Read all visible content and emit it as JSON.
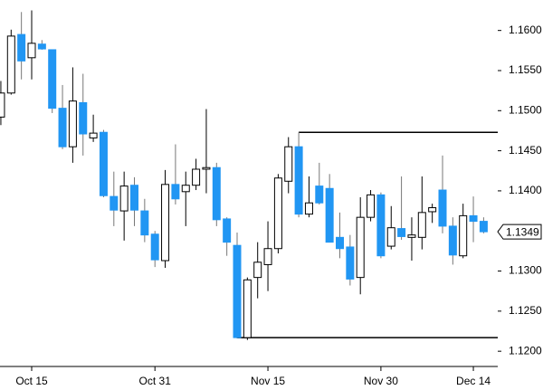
{
  "chart_data": {
    "type": "candlestick",
    "categories": [
      null,
      null,
      null,
      "Oct 15",
      null,
      null,
      null,
      null,
      null,
      null,
      null,
      null,
      null,
      null,
      null,
      "Oct 31",
      null,
      null,
      null,
      null,
      null,
      null,
      null,
      null,
      null,
      null,
      "Nov 15",
      null,
      null,
      null,
      null,
      null,
      null,
      null,
      null,
      null,
      null,
      "Nov 30",
      null,
      null,
      null,
      null,
      null,
      null,
      null,
      null,
      "Dec 14",
      null
    ],
    "open": [
      1.1492,
      1.1522,
      1.1595,
      1.1566,
      1.1583,
      1.1576,
      1.1503,
      1.1455,
      1.151,
      1.1466,
      1.1473,
      1.1393,
      1.1375,
      1.1407,
      1.1375,
      1.1346,
      1.1313,
      1.1408,
      1.1399,
      1.1407,
      1.1427,
      1.1429,
      1.1365,
      1.1332,
      1.1217,
      1.1292,
      1.1308,
      1.1328,
      1.1412,
      1.1455,
      1.1371,
      1.1406,
      1.1403,
      1.1342,
      1.133,
      1.1292,
      1.1367,
      1.1395,
      1.1331,
      1.1353,
      1.1342,
      1.1342,
      1.1374,
      1.1401,
      1.1356,
      1.1319,
      1.1369,
      1.1362
    ],
    "high": [
      1.1537,
      1.1601,
      1.1623,
      1.1625,
      1.1588,
      1.1576,
      1.1532,
      1.1554,
      1.1546,
      1.1495,
      1.1476,
      1.1424,
      1.1424,
      1.1417,
      1.139,
      1.135,
      1.1426,
      1.1458,
      1.1424,
      1.144,
      1.1502,
      1.1435,
      1.1367,
      1.1348,
      1.1292,
      1.1336,
      1.1362,
      1.1421,
      1.1467,
      1.1473,
      1.1418,
      1.1435,
      1.1421,
      1.1373,
      1.1345,
      1.1392,
      1.1401,
      1.1398,
      1.1381,
      1.1418,
      1.1367,
      1.1418,
      1.1384,
      1.1444,
      1.1367,
      1.1384,
      1.1393,
      1.1367
    ],
    "low": [
      1.1482,
      1.152,
      1.1539,
      1.1539,
      1.1576,
      1.1497,
      1.1452,
      1.1435,
      1.1444,
      1.1461,
      1.1392,
      1.1356,
      1.1338,
      1.1356,
      1.1336,
      1.1305,
      1.1304,
      1.1383,
      1.1356,
      1.1401,
      1.1397,
      1.1356,
      1.1319,
      1.1216,
      1.1214,
      1.1266,
      1.1275,
      1.1322,
      1.1397,
      1.1367,
      1.1367,
      1.1383,
      1.1336,
      1.1316,
      1.1282,
      1.1271,
      1.1362,
      1.1316,
      1.1327,
      1.1339,
      1.1313,
      1.1327,
      1.136,
      1.1347,
      1.1308,
      1.1316,
      1.1336,
      1.1347
    ],
    "close": [
      1.1522,
      1.1593,
      1.1562,
      1.1584,
      1.1577,
      1.1503,
      1.1455,
      1.1512,
      1.1471,
      1.1472,
      1.1394,
      1.1376,
      1.1406,
      1.1376,
      1.1345,
      1.1314,
      1.1408,
      1.139,
      1.1407,
      1.1427,
      1.1429,
      1.1364,
      1.1336,
      1.1217,
      1.1289,
      1.1311,
      1.1328,
      1.1416,
      1.1455,
      1.1371,
      1.1385,
      1.1385,
      1.1336,
      1.1328,
      1.129,
      1.1367,
      1.1395,
      1.1319,
      1.1354,
      1.1343,
      1.1345,
      1.1373,
      1.1379,
      1.1356,
      1.132,
      1.1369,
      1.1362,
      1.1349
    ],
    "up_color": "#ffffff",
    "down_color": "#2196f3",
    "ylim": [
      1.1181,
      1.1638
    ],
    "yticks": [
      {
        "value": 1.12,
        "label": "1.1200"
      },
      {
        "value": 1.125,
        "label": "1.1250"
      },
      {
        "value": 1.13,
        "label": "1.1300"
      },
      {
        "value": 1.135,
        "label": "1.1350"
      },
      {
        "value": 1.14,
        "label": "1.1400"
      },
      {
        "value": 1.145,
        "label": "1.1450"
      },
      {
        "value": 1.15,
        "label": "1.1500"
      },
      {
        "value": 1.155,
        "label": "1.1550"
      },
      {
        "value": 1.16,
        "label": "1.1600"
      }
    ],
    "levels": [
      1.1473,
      1.1217
    ],
    "last_price": 1.1349
  }
}
